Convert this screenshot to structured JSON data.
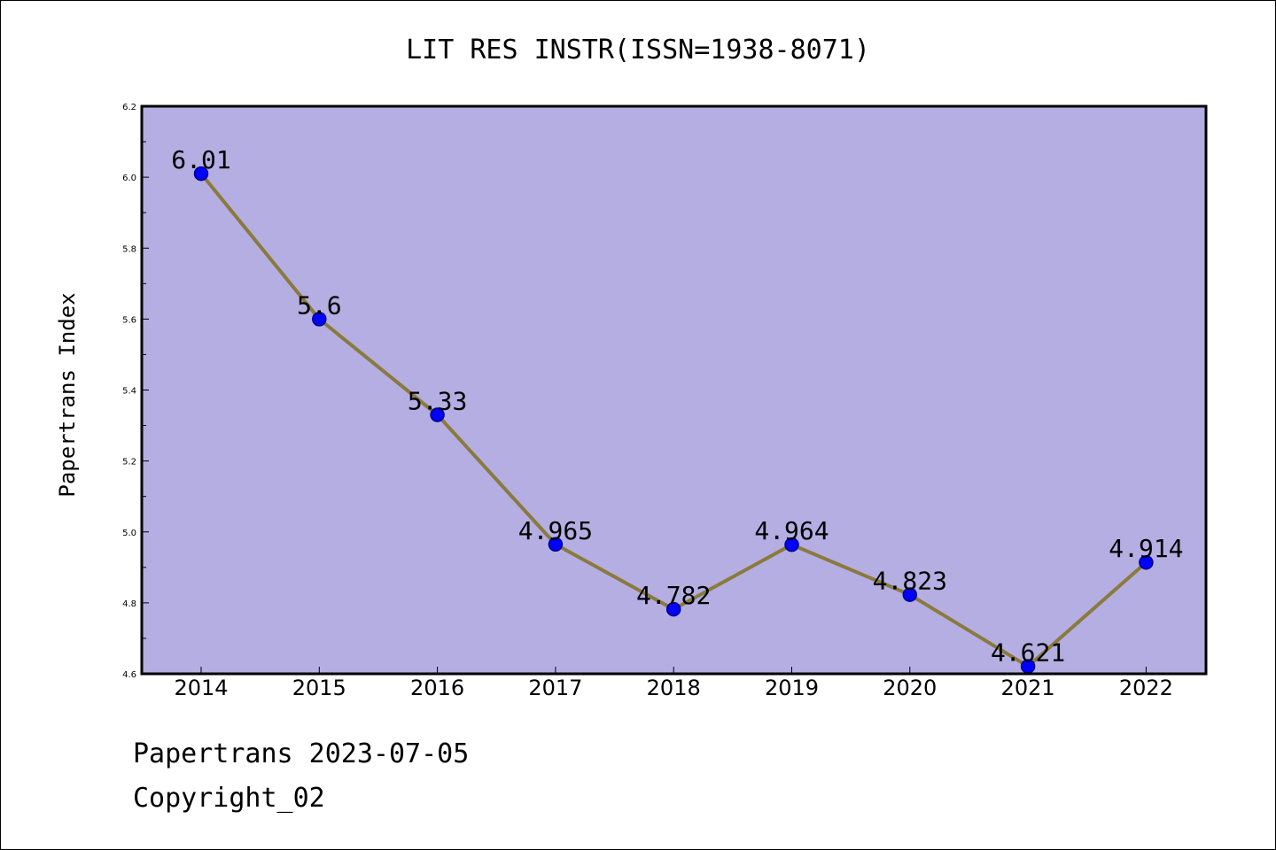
{
  "colors": {
    "plot_background": "#b4aee2",
    "line": "#8a7a3c",
    "marker_fill": "#0000ff",
    "marker_stroke": "#00008b",
    "axis": "#000000"
  },
  "footer": {
    "line1": "Papertrans 2023-07-05",
    "line2": "Copyright_02"
  },
  "chart_data": {
    "type": "line",
    "title": "LIT RES INSTR(ISSN=1938-8071)",
    "xlabel": "",
    "ylabel": "Papertrans Index",
    "categories": [
      "2014",
      "2015",
      "2016",
      "2017",
      "2018",
      "2019",
      "2020",
      "2021",
      "2022"
    ],
    "series": [
      {
        "name": "Papertrans Index",
        "values": [
          6.01,
          5.6,
          5.33,
          4.965,
          4.782,
          4.964,
          4.823,
          4.621,
          4.914
        ],
        "labels": [
          "6.01",
          "5.6",
          "5.33",
          "4.965",
          "4.782",
          "4.964",
          "4.823",
          "4.621",
          "4.914"
        ]
      }
    ],
    "ylim": [
      4.6,
      6.2
    ],
    "yticks": [
      "4.6",
      "4.8",
      "5.0",
      "5.2",
      "5.4",
      "5.6",
      "5.8",
      "6.0",
      "6.2"
    ],
    "grid": false,
    "legend": "none"
  }
}
